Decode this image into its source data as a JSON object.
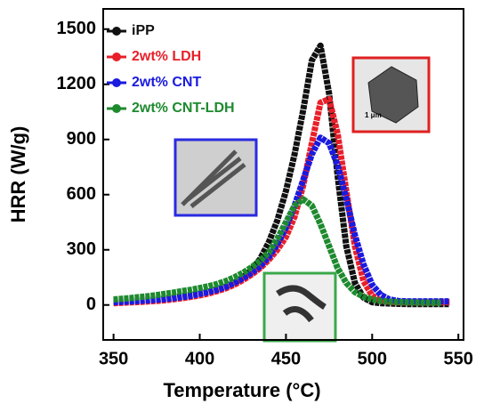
{
  "chart_data": {
    "type": "line",
    "xlabel": "Temperature (°C)",
    "ylabel": "HRR (W/g)",
    "x": [
      350,
      355,
      360,
      365,
      370,
      375,
      380,
      385,
      390,
      395,
      400,
      405,
      410,
      415,
      420,
      425,
      430,
      435,
      440,
      445,
      450,
      455,
      460,
      465,
      470,
      475,
      480,
      485,
      490,
      495,
      500,
      505,
      510,
      515,
      520,
      525,
      530,
      535,
      540,
      545
    ],
    "series": [
      {
        "name": "iPP",
        "color": "#111111",
        "values": [
          20,
          22,
          25,
          27,
          30,
          33,
          37,
          42,
          48,
          55,
          62,
          72,
          85,
          100,
          120,
          150,
          190,
          250,
          340,
          460,
          620,
          820,
          1060,
          1330,
          1410,
          1150,
          700,
          320,
          120,
          40,
          15,
          10,
          8,
          6,
          5,
          5,
          5,
          5,
          5,
          5
        ]
      },
      {
        "name": "2wt% LDH",
        "color": "#e8202a",
        "values": [
          10,
          12,
          14,
          16,
          19,
          22,
          26,
          31,
          37,
          44,
          52,
          62,
          75,
          90,
          110,
          135,
          165,
          200,
          245,
          300,
          370,
          480,
          650,
          880,
          1100,
          1120,
          930,
          620,
          320,
          130,
          50,
          25,
          18,
          15,
          15,
          15,
          15,
          15,
          15,
          15
        ]
      },
      {
        "name": "2wt% CNT",
        "color": "#1a1ae0",
        "values": [
          15,
          17,
          19,
          22,
          25,
          28,
          32,
          37,
          43,
          50,
          60,
          70,
          82,
          98,
          120,
          145,
          175,
          210,
          260,
          330,
          420,
          540,
          680,
          820,
          910,
          880,
          760,
          580,
          380,
          220,
          110,
          55,
          30,
          22,
          20,
          20,
          20,
          20,
          20,
          20
        ]
      },
      {
        "name": "2wt% CNT-LDH",
        "color": "#1e8a2e",
        "values": [
          30,
          34,
          38,
          43,
          48,
          54,
          61,
          68,
          76,
          83,
          92,
          102,
          114,
          130,
          150,
          175,
          205,
          240,
          285,
          360,
          450,
          540,
          575,
          540,
          440,
          320,
          200,
          120,
          70,
          45,
          30,
          22,
          18,
          15,
          14,
          13,
          12,
          12,
          12,
          null
        ]
      }
    ],
    "xlim": [
      344,
      553
    ],
    "ylim": [
      -190,
      1610
    ],
    "xticks": [
      350,
      400,
      450,
      500,
      550
    ],
    "yticks": [
      0,
      300,
      600,
      900,
      1200,
      1500
    ],
    "inset_scale_label": "1 μm"
  }
}
